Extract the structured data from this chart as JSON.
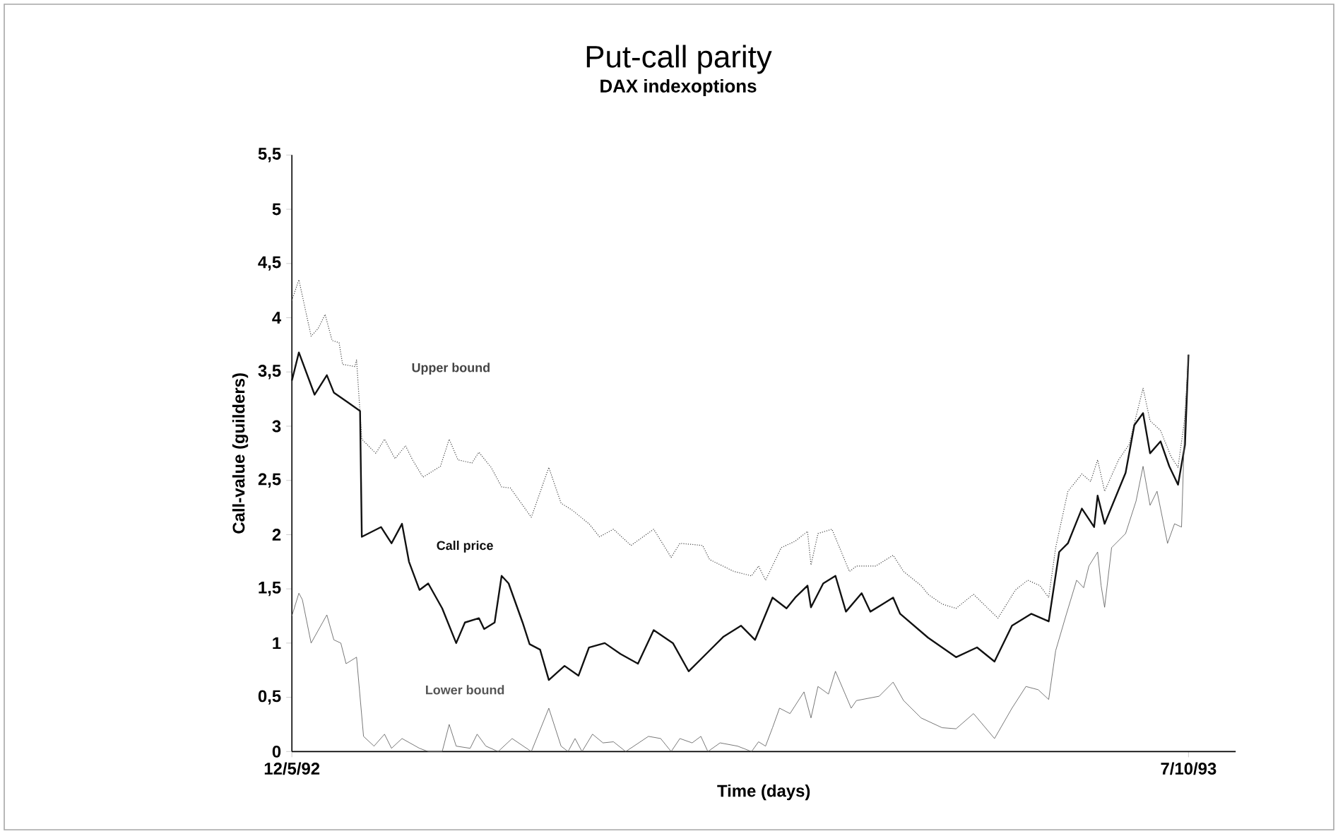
{
  "chart_data": {
    "type": "line",
    "title": "Put-call parity",
    "subtitle": "DAX indexoptions",
    "xlabel": "Time (days)",
    "ylabel": "Call-value (guilders)",
    "xlim": [
      "1992-05-12",
      "1993-11-03"
    ],
    "xticks": [
      {
        "value": "1992-05-12",
        "label": "12/5/92"
      },
      {
        "value": "1993-10-07",
        "label": "7/10/93"
      }
    ],
    "ylim": [
      0,
      5.5
    ],
    "yticks": [
      0,
      {
        "value": 0.5,
        "label": "0,5"
      },
      1,
      {
        "value": 1.5,
        "label": "1,5"
      },
      2,
      {
        "value": 2.5,
        "label": "2,5"
      },
      3,
      {
        "value": 3.5,
        "label": "3,5"
      },
      4,
      {
        "value": 4.5,
        "label": "4,5"
      },
      5,
      {
        "value": 5.5,
        "label": "5,5"
      }
    ],
    "series": [
      {
        "name": "Upper bound",
        "color": "#444444",
        "line_style": "dotted",
        "x": [
          "1992-05-12",
          "1992-05-16",
          "1992-05-23",
          "1992-05-27",
          "1992-05-31",
          "1992-06-04",
          "1992-06-08",
          "1992-06-10",
          "1992-06-17",
          "1992-06-18",
          "1992-06-21",
          "1992-06-29",
          "1992-07-04",
          "1992-07-10",
          "1992-07-16",
          "1992-07-20",
          "1992-07-26",
          "1992-08-05",
          "1992-08-10",
          "1992-08-15",
          "1992-08-23",
          "1992-08-27",
          "1992-09-03",
          "1992-09-09",
          "1992-09-14",
          "1992-09-26",
          "1992-10-06",
          "1992-10-13",
          "1992-10-19",
          "1992-10-29",
          "1992-11-04",
          "1992-11-12",
          "1992-11-22",
          "1992-12-05",
          "1992-12-15",
          "1992-12-20",
          "1993-01-02",
          "1993-01-06",
          "1993-01-20",
          "1993-01-30",
          "1993-02-03",
          "1993-02-07",
          "1993-02-16",
          "1993-02-24",
          "1993-03-03",
          "1993-03-05",
          "1993-03-09",
          "1993-03-17",
          "1993-03-27",
          "1993-03-31",
          "1993-04-11",
          "1993-04-21",
          "1993-04-27",
          "1993-05-07",
          "1993-05-11",
          "1993-05-19",
          "1993-05-27",
          "1993-06-06",
          "1993-06-20",
          "1993-06-30",
          "1993-07-07",
          "1993-07-14",
          "1993-07-19",
          "1993-07-23",
          "1993-07-30",
          "1993-08-07",
          "1993-08-12",
          "1993-08-16",
          "1993-08-20",
          "1993-08-28",
          "1993-09-03",
          "1993-09-11",
          "1993-09-15",
          "1993-09-21",
          "1993-09-27",
          "1993-10-01",
          "1993-10-05",
          "1993-10-07"
        ],
        "values": [
          4.16,
          4.35,
          3.83,
          3.9,
          4.03,
          3.79,
          3.77,
          3.57,
          3.55,
          3.61,
          2.88,
          2.75,
          2.88,
          2.7,
          2.82,
          2.69,
          2.53,
          2.63,
          2.88,
          2.69,
          2.66,
          2.76,
          2.62,
          2.44,
          2.43,
          2.16,
          2.62,
          2.29,
          2.23,
          2.1,
          1.98,
          2.05,
          1.9,
          2.05,
          1.79,
          1.92,
          1.9,
          1.77,
          1.66,
          1.62,
          1.71,
          1.58,
          1.88,
          1.94,
          2.03,
          1.72,
          2.01,
          2.05,
          1.66,
          1.71,
          1.71,
          1.81,
          1.66,
          1.53,
          1.45,
          1.36,
          1.32,
          1.45,
          1.23,
          1.49,
          1.58,
          1.53,
          1.42,
          1.88,
          2.4,
          2.56,
          2.49,
          2.69,
          2.4,
          2.69,
          2.83,
          3.35,
          3.05,
          2.96,
          2.72,
          2.62,
          3.09,
          3.66
        ]
      },
      {
        "name": "Call price",
        "color": "#111111",
        "line_style": "solid",
        "x": [
          "1992-05-12",
          "1992-05-16",
          "1992-05-25",
          "1992-06-01",
          "1992-06-05",
          "1992-06-13",
          "1992-06-20",
          "1992-06-21",
          "1992-07-02",
          "1992-07-08",
          "1992-07-14",
          "1992-07-18",
          "1992-07-24",
          "1992-07-29",
          "1992-08-06",
          "1992-08-14",
          "1992-08-19",
          "1992-08-27",
          "1992-08-30",
          "1992-09-05",
          "1992-09-09",
          "1992-09-13",
          "1992-09-21",
          "1992-09-25",
          "1992-10-01",
          "1992-10-06",
          "1992-10-15",
          "1992-10-23",
          "1992-10-29",
          "1992-11-07",
          "1992-11-16",
          "1992-11-26",
          "1992-12-05",
          "1992-12-16",
          "1992-12-25",
          "1993-01-04",
          "1993-01-14",
          "1993-01-24",
          "1993-02-01",
          "1993-02-11",
          "1993-02-19",
          "1993-02-24",
          "1993-03-03",
          "1993-03-05",
          "1993-03-12",
          "1993-03-19",
          "1993-03-25",
          "1993-04-03",
          "1993-04-08",
          "1993-04-15",
          "1993-04-21",
          "1993-04-25",
          "1993-05-11",
          "1993-05-27",
          "1993-06-08",
          "1993-06-18",
          "1993-06-28",
          "1993-07-09",
          "1993-07-19",
          "1993-07-25",
          "1993-07-30",
          "1993-08-07",
          "1993-08-14",
          "1993-08-16",
          "1993-08-20",
          "1993-09-01",
          "1993-09-06",
          "1993-09-11",
          "1993-09-15",
          "1993-09-21",
          "1993-09-26",
          "1993-10-01",
          "1993-10-05",
          "1993-10-07"
        ],
        "values": [
          3.42,
          3.68,
          3.29,
          3.47,
          3.31,
          3.22,
          3.14,
          1.98,
          2.07,
          1.92,
          2.1,
          1.75,
          1.49,
          1.55,
          1.32,
          1.0,
          1.19,
          1.23,
          1.13,
          1.19,
          1.62,
          1.55,
          1.19,
          0.99,
          0.94,
          0.66,
          0.79,
          0.7,
          0.96,
          1.0,
          0.9,
          0.81,
          1.12,
          1.0,
          0.74,
          0.9,
          1.06,
          1.16,
          1.03,
          1.42,
          1.32,
          1.42,
          1.53,
          1.33,
          1.55,
          1.62,
          1.29,
          1.46,
          1.29,
          1.36,
          1.42,
          1.27,
          1.05,
          0.87,
          0.96,
          0.83,
          1.16,
          1.27,
          1.2,
          1.84,
          1.92,
          2.24,
          2.07,
          2.36,
          2.1,
          2.57,
          3.01,
          3.12,
          2.75,
          2.86,
          2.63,
          2.46,
          2.83,
          3.66
        ]
      },
      {
        "name": "Lower bound",
        "color": "#555555",
        "line_style": "solid",
        "x": [
          "1992-05-12",
          "1992-05-16",
          "1992-05-18",
          "1992-05-23",
          "1992-06-01",
          "1992-06-05",
          "1992-06-09",
          "1992-06-12",
          "1992-06-17",
          "1992-06-18",
          "1992-06-22",
          "1992-06-28",
          "1992-07-04",
          "1992-07-08",
          "1992-07-14",
          "1992-07-24",
          "1992-07-29",
          "1992-08-06",
          "1992-08-10",
          "1992-08-14",
          "1992-08-22",
          "1992-08-26",
          "1992-08-31",
          "1992-09-07",
          "1992-09-15",
          "1992-09-26",
          "1992-10-06",
          "1992-10-13",
          "1992-10-17",
          "1992-10-21",
          "1992-10-25",
          "1992-10-31",
          "1992-11-06",
          "1992-11-12",
          "1992-11-19",
          "1992-12-02",
          "1992-12-09",
          "1992-12-15",
          "1992-12-20",
          "1992-12-27",
          "1993-01-01",
          "1993-01-05",
          "1993-01-12",
          "1993-01-22",
          "1993-01-30",
          "1993-02-03",
          "1993-02-07",
          "1993-02-11",
          "1993-02-15",
          "1993-02-21",
          "1993-03-01",
          "1993-03-05",
          "1993-03-09",
          "1993-03-15",
          "1993-03-19",
          "1993-03-28",
          "1993-03-31",
          "1993-04-13",
          "1993-04-21",
          "1993-04-27",
          "1993-05-07",
          "1993-05-19",
          "1993-05-27",
          "1993-06-06",
          "1993-06-18",
          "1993-06-28",
          "1993-07-06",
          "1993-07-13",
          "1993-07-19",
          "1993-07-23",
          "1993-07-29",
          "1993-08-04",
          "1993-08-08",
          "1993-08-11",
          "1993-08-16",
          "1993-08-18",
          "1993-08-20",
          "1993-08-24",
          "1993-09-01",
          "1993-09-07",
          "1993-09-11",
          "1993-09-15",
          "1993-09-19",
          "1993-09-25",
          "1993-09-29",
          "1993-10-03",
          "1993-10-05",
          "1993-10-07"
        ],
        "values": [
          1.25,
          1.46,
          1.4,
          1.0,
          1.26,
          1.03,
          1.0,
          0.81,
          0.86,
          0.87,
          0.14,
          0.05,
          0.16,
          0.03,
          0.12,
          0.03,
          0,
          0,
          0.25,
          0.05,
          0.03,
          0.16,
          0.05,
          0,
          0.12,
          0,
          0.4,
          0.05,
          0,
          0.12,
          0,
          0.16,
          0.08,
          0.09,
          0,
          0.14,
          0.12,
          0,
          0.12,
          0.08,
          0.14,
          0,
          0.08,
          0.05,
          0,
          0.09,
          0.05,
          0.22,
          0.4,
          0.35,
          0.55,
          0.31,
          0.6,
          0.53,
          0.74,
          0.4,
          0.47,
          0.51,
          0.64,
          0.47,
          0.31,
          0.22,
          0.21,
          0.35,
          0.12,
          0.4,
          0.6,
          0.57,
          0.48,
          0.93,
          1.26,
          1.58,
          1.51,
          1.71,
          1.84,
          1.53,
          1.33,
          1.88,
          2.01,
          2.31,
          2.63,
          2.27,
          2.4,
          1.92,
          2.1,
          2.07,
          3.09,
          3.66
        ]
      }
    ]
  }
}
